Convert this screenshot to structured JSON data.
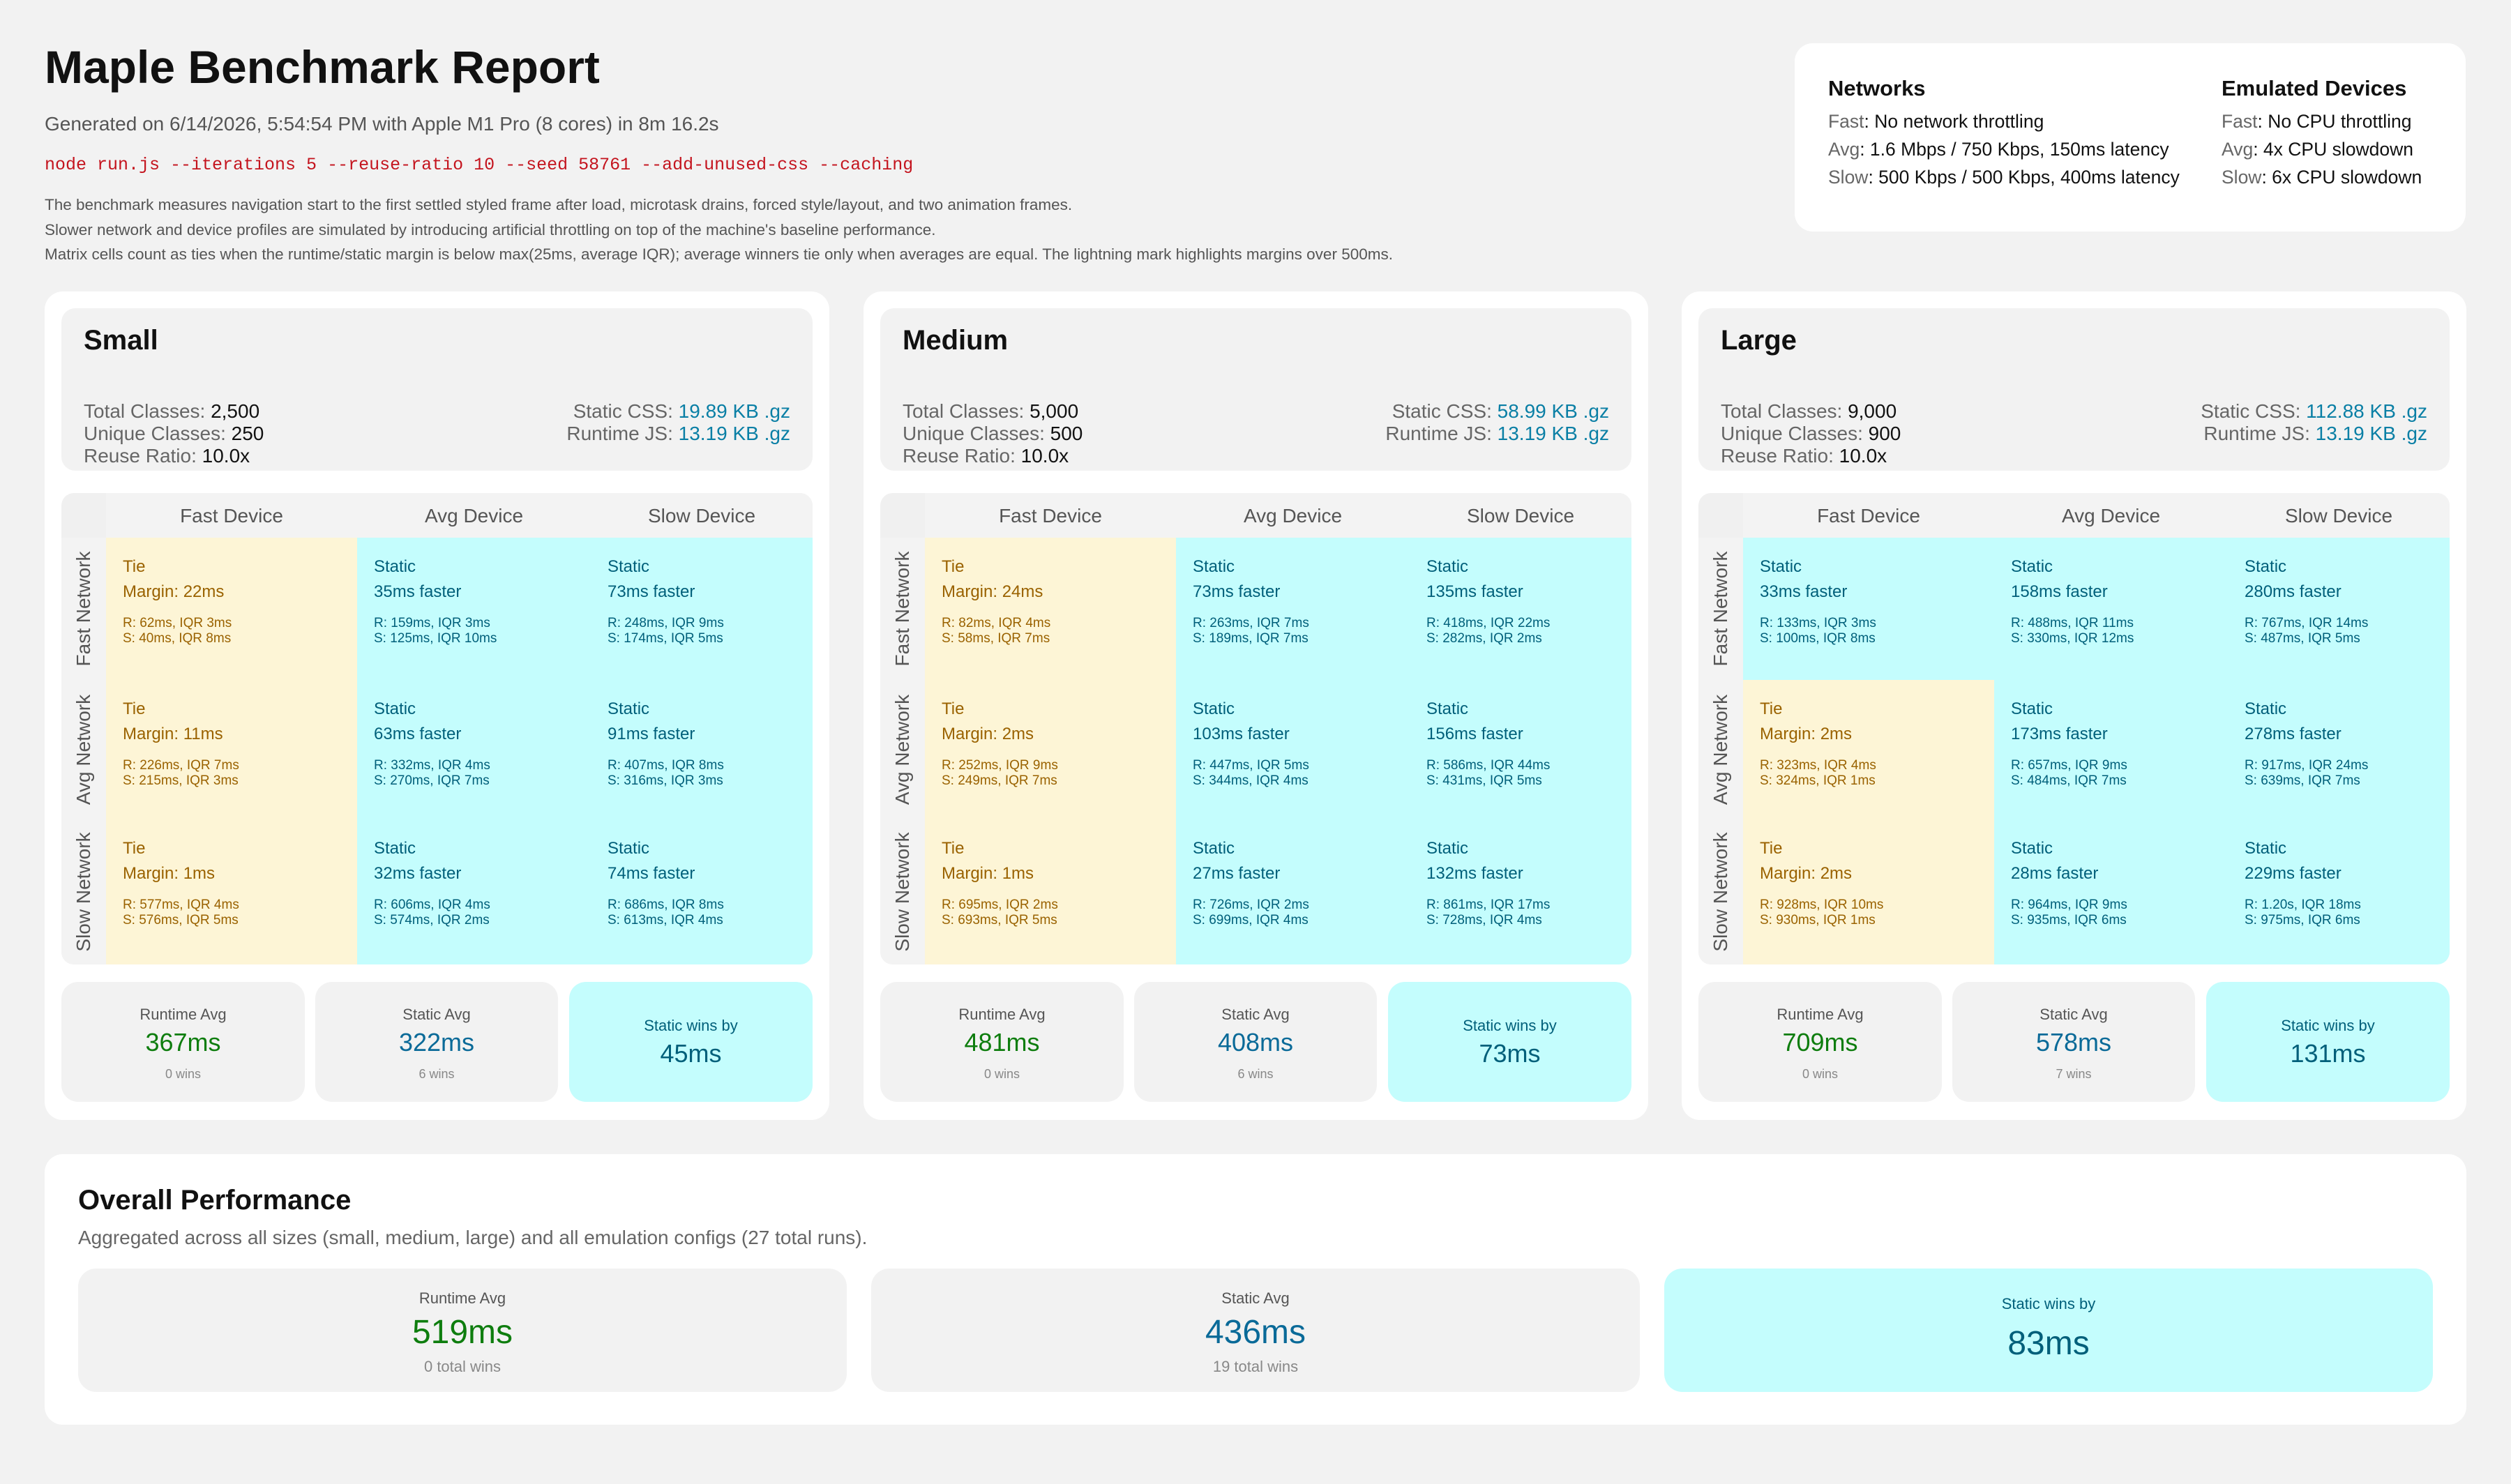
{
  "header": {
    "title": "Maple Benchmark Report",
    "generated": "Generated on 6/14/2026, 5:54:54 PM with Apple M1 Pro (8 cores) in 8m 16.2s",
    "command": "node run.js --iterations 5 --reuse-ratio 10 --seed 58761 --add-unused-css --caching",
    "description": [
      "The benchmark measures navigation start to the first settled styled frame after load, microtask drains, forced style/layout, and two animation frames.",
      "Slower network and device profiles are simulated by introducing artificial throttling on top of the machine's baseline performance.",
      "Matrix cells count as ties when the runtime/static margin is below max(25ms, average IQR); average winners tie only when averages are equal. The lightning mark highlights margins over 500ms."
    ]
  },
  "legend": {
    "networks": {
      "title": "Networks",
      "items": [
        {
          "key": "Fast",
          "value": ": No network throttling"
        },
        {
          "key": "Avg",
          "value": ": 1.6 Mbps / 750 Kbps, 150ms latency"
        },
        {
          "key": "Slow",
          "value": ": 500 Kbps / 500 Kbps, 400ms latency"
        }
      ]
    },
    "devices": {
      "title": "Emulated Devices",
      "items": [
        {
          "key": "Fast",
          "value": ": No CPU throttling"
        },
        {
          "key": "Avg",
          "value": ": 4x CPU slowdown"
        },
        {
          "key": "Slow",
          "value": ": 6x CPU slowdown"
        }
      ]
    }
  },
  "labels": {
    "total_classes": "Total Classes: ",
    "unique_classes": "Unique Classes: ",
    "reuse_ratio": "Reuse Ratio: ",
    "static_css": "Static CSS: ",
    "runtime_js": "Runtime JS: ",
    "col_heads": [
      "Fast Device",
      "Avg Device",
      "Slow Device"
    ],
    "row_heads": [
      "Fast Network",
      "Avg Network",
      "Slow Network"
    ],
    "runtime_avg": "Runtime Avg",
    "static_avg": "Static Avg"
  },
  "panels": [
    {
      "title": "Small",
      "total_classes": "2,500",
      "unique_classes": "250",
      "reuse_ratio": "10.0x",
      "static_css": "19.89 KB .gz",
      "runtime_js": "13.19 KB .gz",
      "cells": [
        [
          {
            "winner": "Tie",
            "margin": "Margin: 22ms",
            "r": "R: 62ms, IQR 3ms",
            "s": "S: 40ms, IQR 8ms"
          },
          {
            "winner": "Static",
            "margin": "35ms faster",
            "r": "R: 159ms, IQR 3ms",
            "s": "S: 125ms, IQR 10ms"
          },
          {
            "winner": "Static",
            "margin": "73ms faster",
            "r": "R: 248ms, IQR 9ms",
            "s": "S: 174ms, IQR 5ms"
          }
        ],
        [
          {
            "winner": "Tie",
            "margin": "Margin: 11ms",
            "r": "R: 226ms, IQR 7ms",
            "s": "S: 215ms, IQR 3ms"
          },
          {
            "winner": "Static",
            "margin": "63ms faster",
            "r": "R: 332ms, IQR 4ms",
            "s": "S: 270ms, IQR 7ms"
          },
          {
            "winner": "Static",
            "margin": "91ms faster",
            "r": "R: 407ms, IQR 8ms",
            "s": "S: 316ms, IQR 3ms"
          }
        ],
        [
          {
            "winner": "Tie",
            "margin": "Margin: 1ms",
            "r": "R: 577ms, IQR 4ms",
            "s": "S: 576ms, IQR 5ms"
          },
          {
            "winner": "Static",
            "margin": "32ms faster",
            "r": "R: 606ms, IQR 4ms",
            "s": "S: 574ms, IQR 2ms"
          },
          {
            "winner": "Static",
            "margin": "74ms faster",
            "r": "R: 686ms, IQR 8ms",
            "s": "S: 613ms, IQR 4ms"
          }
        ]
      ],
      "runtime_avg": "367ms",
      "runtime_wins": "0 wins",
      "static_avg": "322ms",
      "static_wins": "6 wins",
      "winner_label": "Static wins by",
      "winner_value": "45ms"
    },
    {
      "title": "Medium",
      "total_classes": "5,000",
      "unique_classes": "500",
      "reuse_ratio": "10.0x",
      "static_css": "58.99 KB .gz",
      "runtime_js": "13.19 KB .gz",
      "cells": [
        [
          {
            "winner": "Tie",
            "margin": "Margin: 24ms",
            "r": "R: 82ms, IQR 4ms",
            "s": "S: 58ms, IQR 7ms"
          },
          {
            "winner": "Static",
            "margin": "73ms faster",
            "r": "R: 263ms, IQR 7ms",
            "s": "S: 189ms, IQR 7ms"
          },
          {
            "winner": "Static",
            "margin": "135ms faster",
            "r": "R: 418ms, IQR 22ms",
            "s": "S: 282ms, IQR 2ms"
          }
        ],
        [
          {
            "winner": "Tie",
            "margin": "Margin: 2ms",
            "r": "R: 252ms, IQR 9ms",
            "s": "S: 249ms, IQR 7ms"
          },
          {
            "winner": "Static",
            "margin": "103ms faster",
            "r": "R: 447ms, IQR 5ms",
            "s": "S: 344ms, IQR 4ms"
          },
          {
            "winner": "Static",
            "margin": "156ms faster",
            "r": "R: 586ms, IQR 44ms",
            "s": "S: 431ms, IQR 5ms"
          }
        ],
        [
          {
            "winner": "Tie",
            "margin": "Margin: 1ms",
            "r": "R: 695ms, IQR 2ms",
            "s": "S: 693ms, IQR 5ms"
          },
          {
            "winner": "Static",
            "margin": "27ms faster",
            "r": "R: 726ms, IQR 2ms",
            "s": "S: 699ms, IQR 4ms"
          },
          {
            "winner": "Static",
            "margin": "132ms faster",
            "r": "R: 861ms, IQR 17ms",
            "s": "S: 728ms, IQR 4ms"
          }
        ]
      ],
      "runtime_avg": "481ms",
      "runtime_wins": "0 wins",
      "static_avg": "408ms",
      "static_wins": "6 wins",
      "winner_label": "Static wins by",
      "winner_value": "73ms"
    },
    {
      "title": "Large",
      "total_classes": "9,000",
      "unique_classes": "900",
      "reuse_ratio": "10.0x",
      "static_css": "112.88 KB .gz",
      "runtime_js": "13.19 KB .gz",
      "cells": [
        [
          {
            "winner": "Static",
            "margin": "33ms faster",
            "r": "R: 133ms, IQR 3ms",
            "s": "S: 100ms, IQR 8ms"
          },
          {
            "winner": "Static",
            "margin": "158ms faster",
            "r": "R: 488ms, IQR 11ms",
            "s": "S: 330ms, IQR 12ms"
          },
          {
            "winner": "Static",
            "margin": "280ms faster",
            "r": "R: 767ms, IQR 14ms",
            "s": "S: 487ms, IQR 5ms"
          }
        ],
        [
          {
            "winner": "Tie",
            "margin": "Margin: 2ms",
            "r": "R: 323ms, IQR 4ms",
            "s": "S: 324ms, IQR 1ms"
          },
          {
            "winner": "Static",
            "margin": "173ms faster",
            "r": "R: 657ms, IQR 9ms",
            "s": "S: 484ms, IQR 7ms"
          },
          {
            "winner": "Static",
            "margin": "278ms faster",
            "r": "R: 917ms, IQR 24ms",
            "s": "S: 639ms, IQR 7ms"
          }
        ],
        [
          {
            "winner": "Tie",
            "margin": "Margin: 2ms",
            "r": "R: 928ms, IQR 10ms",
            "s": "S: 930ms, IQR 1ms"
          },
          {
            "winner": "Static",
            "margin": "28ms faster",
            "r": "R: 964ms, IQR 9ms",
            "s": "S: 935ms, IQR 6ms"
          },
          {
            "winner": "Static",
            "margin": "229ms faster",
            "r": "R: 1.20s, IQR 18ms",
            "s": "S: 975ms, IQR 6ms"
          }
        ]
      ],
      "runtime_avg": "709ms",
      "runtime_wins": "0 wins",
      "static_avg": "578ms",
      "static_wins": "7 wins",
      "winner_label": "Static wins by",
      "winner_value": "131ms"
    }
  ],
  "overall": {
    "title": "Overall Performance",
    "subtitle": "Aggregated across all sizes (small, medium, large) and all emulation configs (27 total runs).",
    "runtime_label": "Runtime Avg",
    "runtime_value": "519ms",
    "runtime_wins": "0 total wins",
    "static_label": "Static Avg",
    "static_value": "436ms",
    "static_wins": "19 total wins",
    "winner_label": "Static wins by",
    "winner_value": "83ms"
  },
  "colors": {
    "tie_bg": "#fdf5d6",
    "tie_text": "#9a6200",
    "static_bg": "#c4fdfd",
    "static_text": "#005f7a",
    "runtime_value": "#0e7d0e",
    "static_value": "#0a6a98",
    "command": "#c4141e",
    "link_value": "#0a7fa5"
  }
}
